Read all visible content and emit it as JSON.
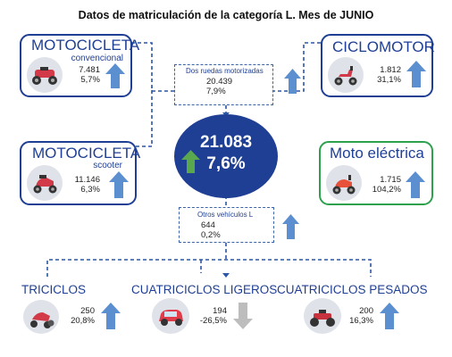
{
  "title": "Datos de matriculación de la categoría L. Mes de JUNIO",
  "colors": {
    "navy": "#1f3f94",
    "arrow_up": "#5b8fd0",
    "arrow_down": "#bdbdbd",
    "arrow_green": "#5aa84e",
    "green_border": "#2ea14d"
  },
  "total": {
    "value": "21.083",
    "pct": "7,6%",
    "icon": "up-arrow-green"
  },
  "groups": {
    "dos_ruedas": {
      "label": "Dos ruedas motorizadas",
      "value": "20.439",
      "pct": "7,9%"
    },
    "otros": {
      "label": "Otros vehículos L",
      "value": "644",
      "pct": "0,2%"
    }
  },
  "items": {
    "moto_conv": {
      "name": "MOTOCICLETA",
      "sub": "convencional",
      "value": "7.481",
      "pct": "5,7%",
      "trend": "up"
    },
    "ciclomotor": {
      "name": "CICLOMOTOR",
      "value": "1.812",
      "pct": "31,1%",
      "trend": "up"
    },
    "moto_scooter": {
      "name": "MOTOCICLETA",
      "sub": "scooter",
      "value": "11.146",
      "pct": "6,3%",
      "trend": "up"
    },
    "moto_electrica": {
      "name": "Moto eléctrica",
      "value": "1.715",
      "pct": "104,2%",
      "trend": "up"
    },
    "triciclos": {
      "name": "TRICICLOS",
      "value": "250",
      "pct": "20,8%",
      "trend": "up"
    },
    "cuatri_ligeros": {
      "name": "CUATRICICLOS LIGEROS",
      "value": "194",
      "pct": "-26,5%",
      "trend": "down"
    },
    "cuatri_pesados": {
      "name": "CUATRICICLOS PESADOS",
      "value": "200",
      "pct": "16,3%",
      "trend": "up"
    }
  }
}
